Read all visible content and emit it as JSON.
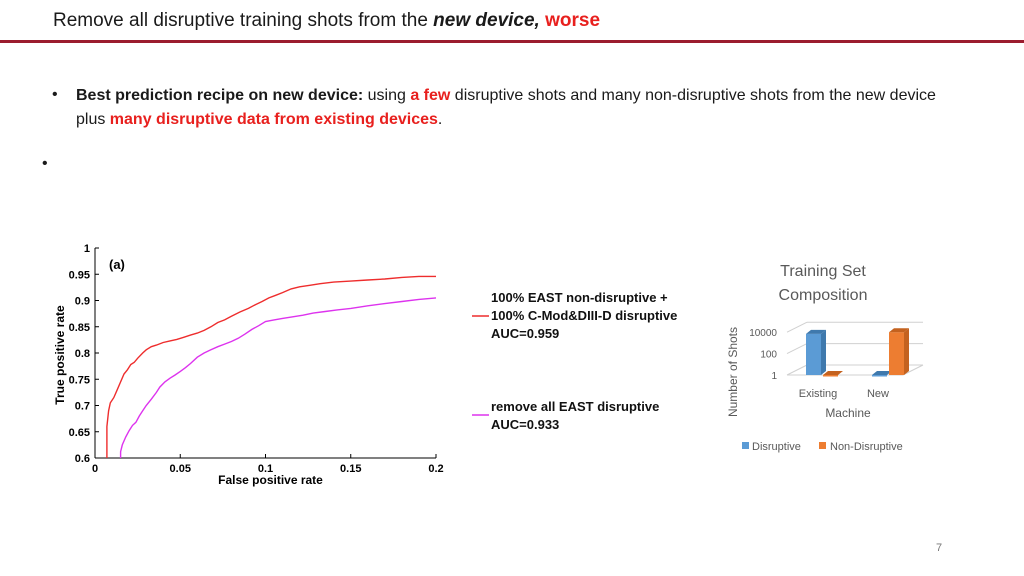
{
  "slide": {
    "title_prefix": "Remove all disruptive training shots from the ",
    "title_em": "new device,",
    "title_red": " worse",
    "bullet1": {
      "bold": "Best prediction recipe on new device:",
      "t1": " using ",
      "red1": "a few",
      "t2": " disruptive shots and many non-disruptive shots from the new device plus ",
      "red2": "many disruptive data from existing devices",
      "t3": "."
    },
    "bullet_symbol": "•",
    "page_number": "7"
  },
  "legend": {
    "red_lines": [
      "100% EAST non-disruptive +",
      "100% C-Mod&DIII-D disruptive",
      "AUC=0.959"
    ],
    "magenta_lines": [
      "remove all EAST disruptive",
      "AUC=0.933"
    ]
  },
  "chart_data": [
    {
      "type": "line",
      "title": "(a)",
      "xlabel": "False positive rate",
      "ylabel": "True positive rate",
      "xlim": [
        0,
        0.2
      ],
      "ylim": [
        0.6,
        1.0
      ],
      "xticks": [
        "0",
        "0.05",
        "0.1",
        "0.15",
        "0.2"
      ],
      "yticks": [
        "0.6",
        "0.65",
        "0.7",
        "0.75",
        "0.8",
        "0.85",
        "0.9",
        "0.95",
        "1"
      ],
      "series": [
        {
          "name": "100% EAST non-disruptive + 100% C-Mod&DIII-D disruptive, AUC=0.959",
          "color": "#ee2d2d",
          "x": [
            0.007,
            0.007,
            0.008,
            0.009,
            0.011,
            0.013,
            0.015,
            0.017,
            0.019,
            0.021,
            0.023,
            0.025,
            0.028,
            0.03,
            0.033,
            0.036,
            0.04,
            0.044,
            0.048,
            0.052,
            0.056,
            0.06,
            0.064,
            0.068,
            0.072,
            0.076,
            0.08,
            0.085,
            0.09,
            0.094,
            0.098,
            0.102,
            0.106,
            0.11,
            0.115,
            0.12,
            0.126,
            0.132,
            0.14,
            0.15,
            0.16,
            0.17,
            0.18,
            0.19,
            0.2
          ],
          "y": [
            0.6,
            0.66,
            0.69,
            0.705,
            0.715,
            0.73,
            0.745,
            0.76,
            0.768,
            0.778,
            0.782,
            0.79,
            0.8,
            0.806,
            0.812,
            0.815,
            0.82,
            0.823,
            0.826,
            0.83,
            0.834,
            0.838,
            0.843,
            0.85,
            0.858,
            0.863,
            0.87,
            0.878,
            0.885,
            0.892,
            0.898,
            0.905,
            0.91,
            0.915,
            0.922,
            0.926,
            0.929,
            0.932,
            0.935,
            0.937,
            0.939,
            0.941,
            0.944,
            0.946,
            0.946
          ]
        },
        {
          "name": "remove all EAST disruptive, AUC=0.933",
          "color": "#dd33ee",
          "x": [
            0.015,
            0.015,
            0.016,
            0.018,
            0.02,
            0.022,
            0.024,
            0.026,
            0.028,
            0.03,
            0.033,
            0.036,
            0.038,
            0.041,
            0.044,
            0.047,
            0.05,
            0.053,
            0.056,
            0.06,
            0.064,
            0.068,
            0.072,
            0.076,
            0.08,
            0.084,
            0.088,
            0.092,
            0.096,
            0.1,
            0.105,
            0.11,
            0.116,
            0.122,
            0.128,
            0.135,
            0.142,
            0.15,
            0.16,
            0.17,
            0.18,
            0.19,
            0.2
          ],
          "y": [
            0.6,
            0.612,
            0.625,
            0.64,
            0.652,
            0.662,
            0.668,
            0.68,
            0.69,
            0.7,
            0.712,
            0.725,
            0.735,
            0.745,
            0.752,
            0.758,
            0.765,
            0.772,
            0.78,
            0.792,
            0.8,
            0.806,
            0.812,
            0.817,
            0.822,
            0.828,
            0.836,
            0.845,
            0.852,
            0.86,
            0.863,
            0.866,
            0.869,
            0.872,
            0.876,
            0.879,
            0.882,
            0.885,
            0.89,
            0.894,
            0.898,
            0.902,
            0.905
          ]
        }
      ]
    },
    {
      "type": "bar",
      "title": "Training Set Composition",
      "xlabel": "Machine",
      "ylabel": "Number of Shots",
      "scale": "log",
      "categories": [
        "Existing",
        "New"
      ],
      "yticks": [
        "1",
        "100",
        "10000"
      ],
      "series": [
        {
          "name": "Disruptive",
          "color": "#5b9bd5",
          "values": [
            7000,
            1
          ]
        },
        {
          "name": "Non-Disruptive",
          "color": "#ed7d31",
          "values": [
            1,
            10000
          ]
        }
      ]
    }
  ]
}
